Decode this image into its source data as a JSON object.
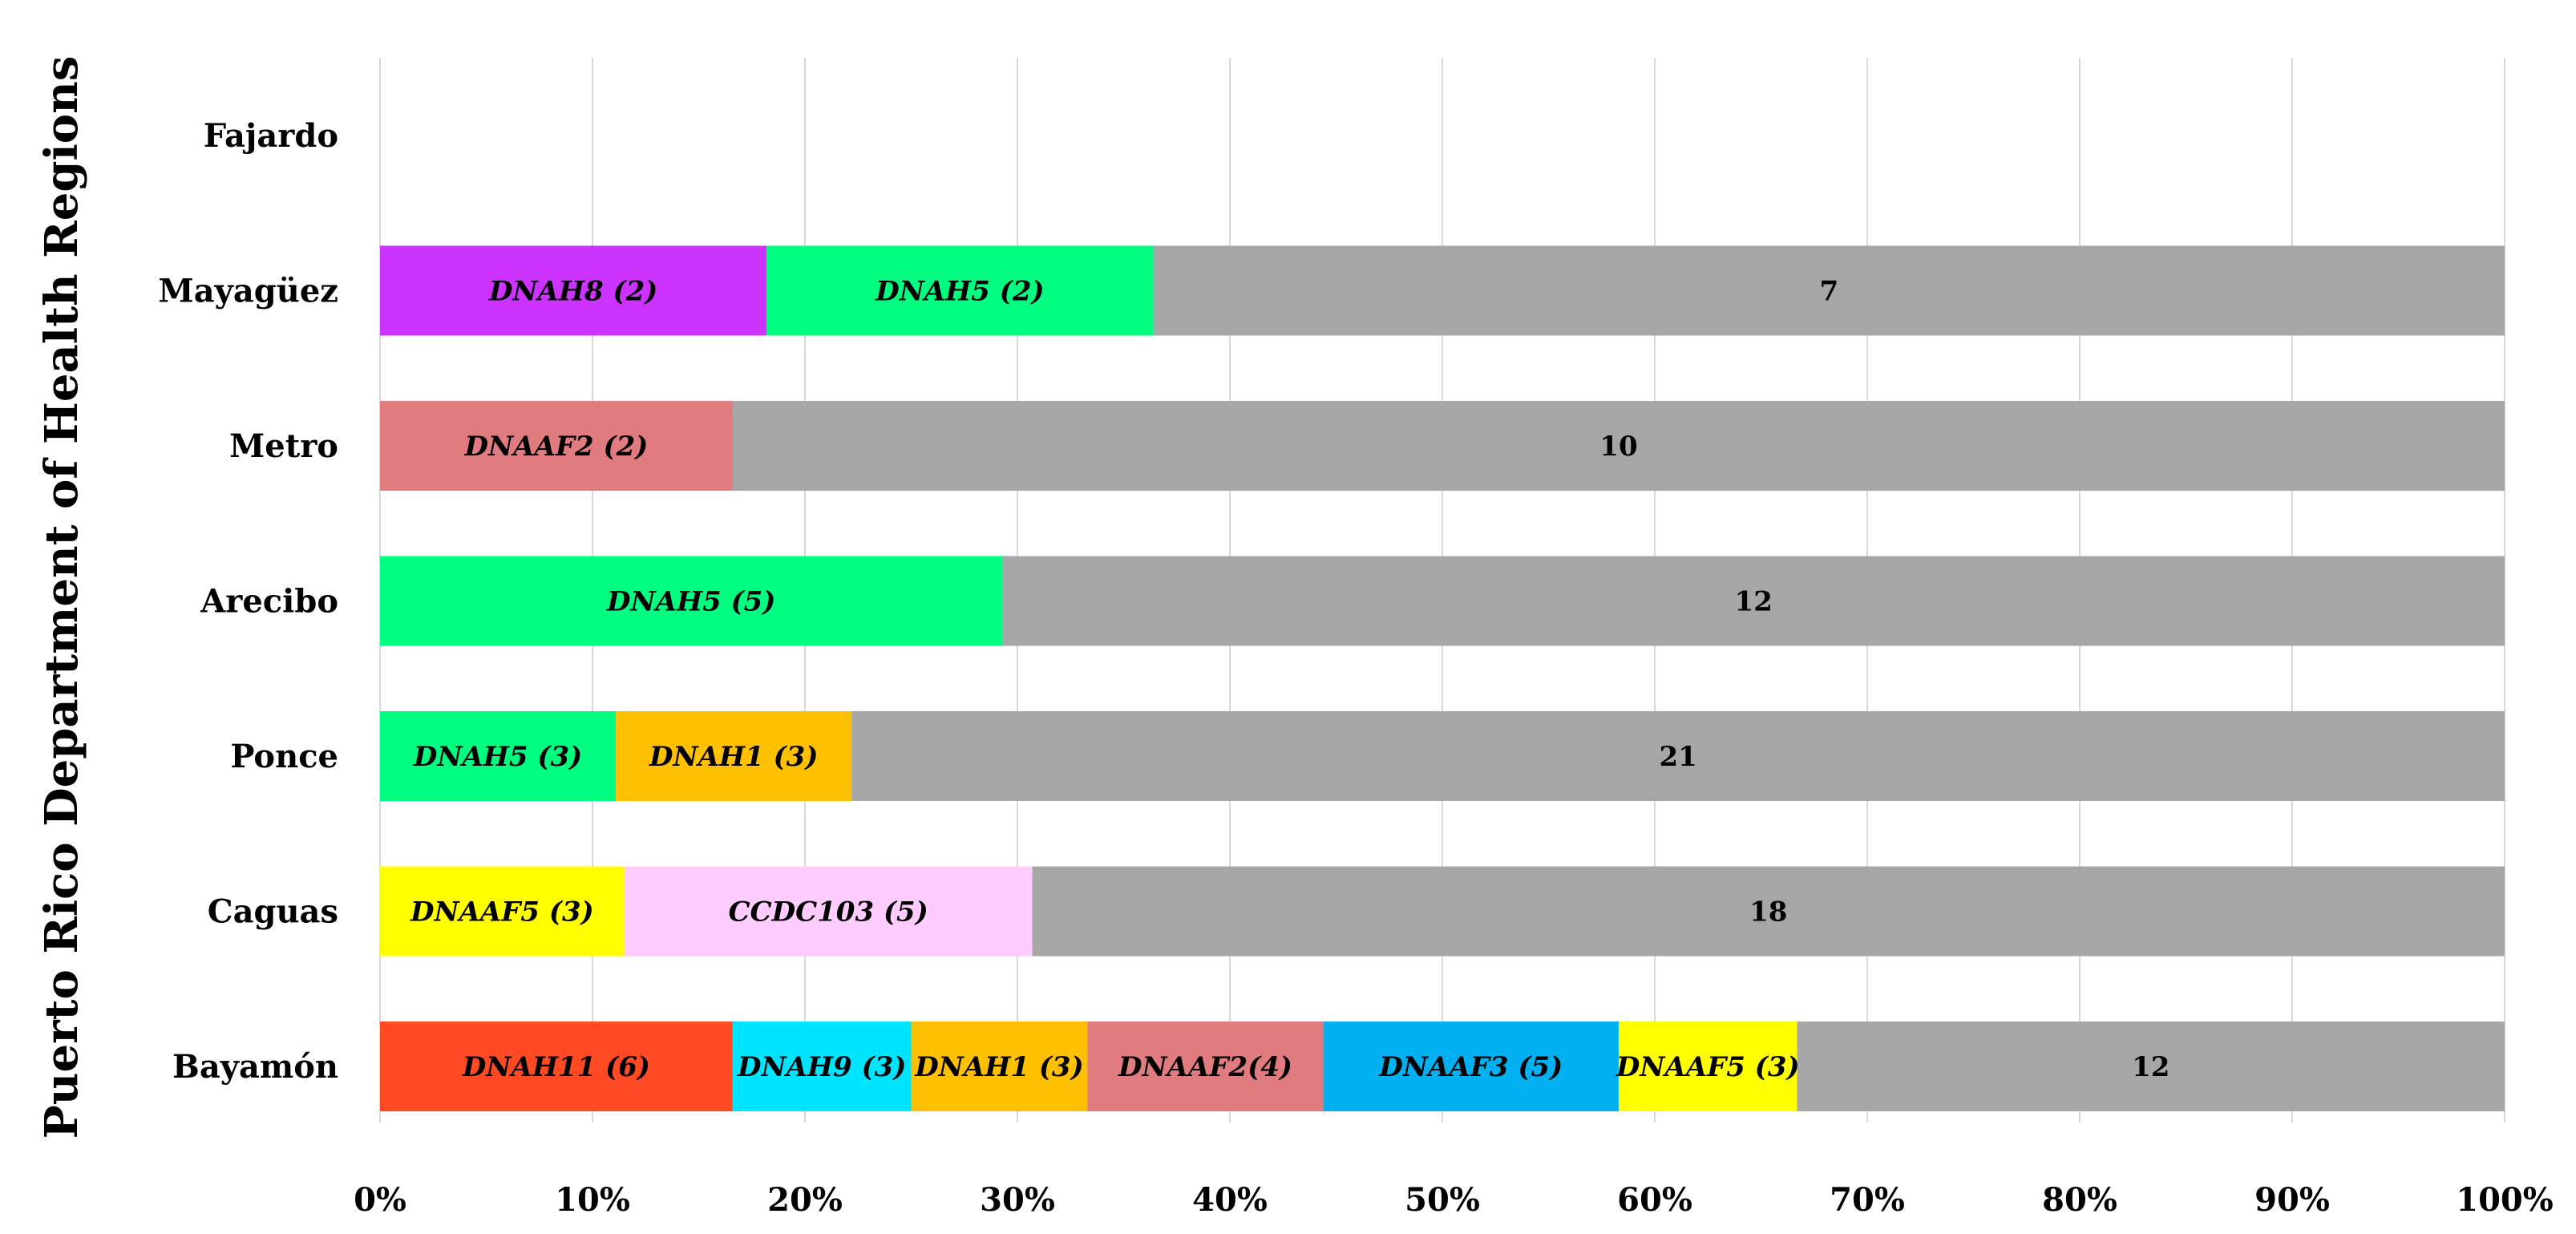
{
  "chart_data": {
    "type": "bar",
    "orientation": "horizontal",
    "stacked": "percent",
    "title": "",
    "xlabel": "",
    "ylabel": "Puerto Rico Department of Health Regions",
    "xlim": [
      0,
      100
    ],
    "x_ticks": [
      "0%",
      "10%",
      "20%",
      "30%",
      "40%",
      "50%",
      "60%",
      "70%",
      "80%",
      "90%",
      "100%"
    ],
    "grid": "vertical",
    "legend": "none",
    "categories": [
      "Fajardo",
      "Mayagüez",
      "Metro",
      "Arecibo",
      "Ponce",
      "Caguas",
      "Bayamón"
    ],
    "bars": [
      {
        "category": "Fajardo",
        "segments": []
      },
      {
        "category": "Mayagüez",
        "segments": [
          {
            "gene": "DNAH8",
            "count": "(2)",
            "percent": 18.2,
            "color": "#cc33ff"
          },
          {
            "gene": "DNAH5",
            "count": "(2)",
            "percent": 18.2,
            "color": "#00ff80"
          },
          {
            "gene": "",
            "count": "7",
            "percent": 63.6,
            "color": "#a6a6a6"
          }
        ]
      },
      {
        "category": "Metro",
        "segments": [
          {
            "gene": "DNAAF2",
            "count": "(2)",
            "percent": 16.6,
            "color": "#e07b80"
          },
          {
            "gene": "",
            "count": "10",
            "percent": 83.4,
            "color": "#a6a6a6"
          }
        ]
      },
      {
        "category": "Arecibo",
        "segments": [
          {
            "gene": "DNAH5",
            "count": "(5)",
            "percent": 29.3,
            "color": "#00ff80"
          },
          {
            "gene": "",
            "count": "12",
            "percent": 70.7,
            "color": "#a6a6a6"
          }
        ]
      },
      {
        "category": "Ponce",
        "segments": [
          {
            "gene": "DNAH5",
            "count": "(3)",
            "percent": 11.1,
            "color": "#00ff80"
          },
          {
            "gene": "DNAH1",
            "count": "(3)",
            "percent": 11.1,
            "color": "#ffc000"
          },
          {
            "gene": "",
            "count": "21",
            "percent": 77.8,
            "color": "#a6a6a6"
          }
        ]
      },
      {
        "category": "Caguas",
        "segments": [
          {
            "gene": "DNAAF5",
            "count": "(3)",
            "percent": 11.5,
            "color": "#ffff00"
          },
          {
            "gene": "CCDC103",
            "count": "(5)",
            "percent": 19.2,
            "color": "#ffccff"
          },
          {
            "gene": "",
            "count": "18",
            "percent": 69.3,
            "color": "#a6a6a6"
          }
        ]
      },
      {
        "category": "Bayamón",
        "segments": [
          {
            "gene": "DNAH11",
            "count": "(6)",
            "percent": 16.6,
            "color": "#ff4a24"
          },
          {
            "gene": "DNAH9",
            "count": "(3)",
            "percent": 8.4,
            "color": "#00e5ff"
          },
          {
            "gene": "DNAH1",
            "count": "(3)",
            "percent": 8.3,
            "color": "#ffc000"
          },
          {
            "gene": "DNAAF2",
            "count": "(4)",
            "percent": 11.1,
            "color": "#e07b80"
          },
          {
            "gene": "DNAAF3",
            "count": "(5)",
            "percent": 13.9,
            "color": "#00b0f0"
          },
          {
            "gene": "DNAAF5",
            "count": "(3)",
            "percent": 8.4,
            "color": "#ffff00"
          },
          {
            "gene": "",
            "count": "12",
            "percent": 33.3,
            "color": "#a6a6a6"
          }
        ]
      }
    ]
  }
}
